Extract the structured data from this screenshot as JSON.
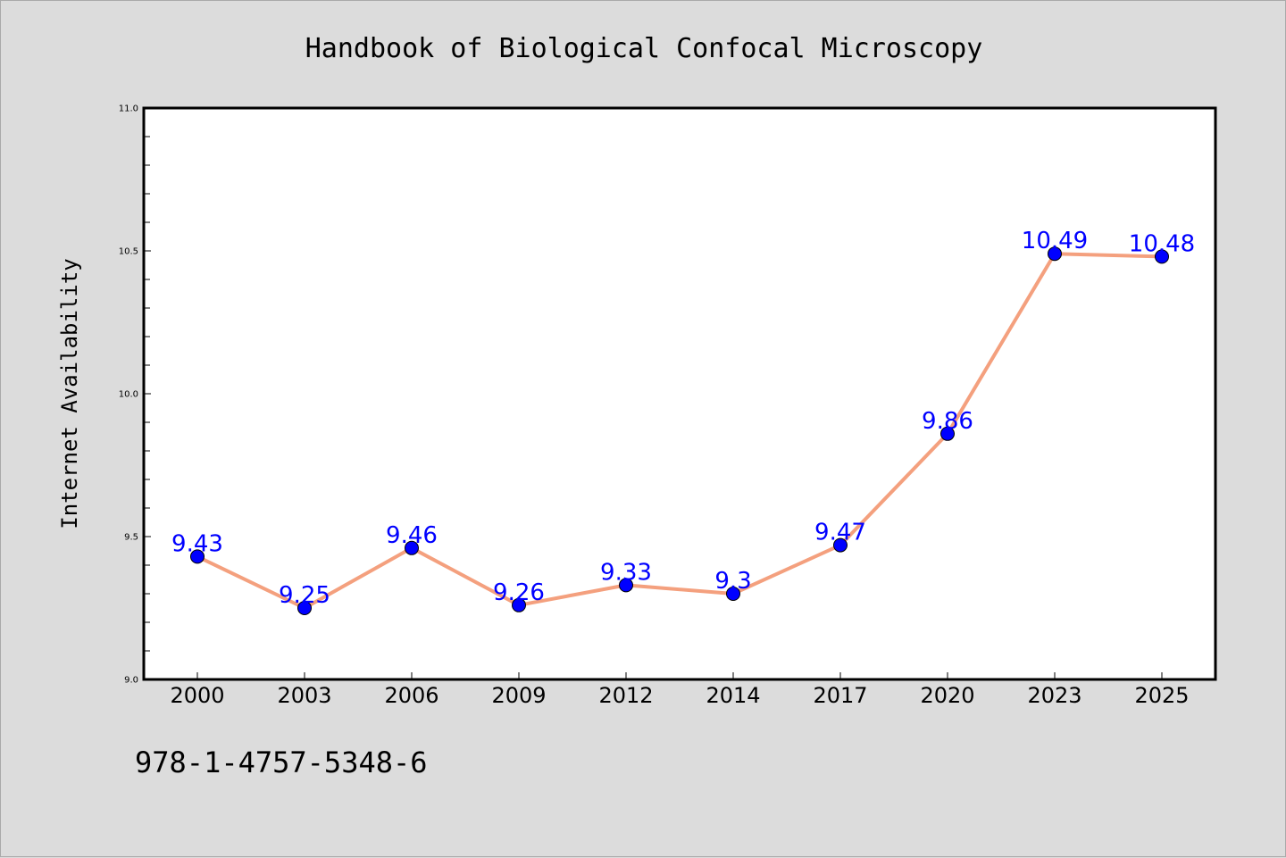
{
  "chart_data": {
    "type": "line",
    "title": "Handbook of Biological Confocal Microscopy",
    "xlabel": "",
    "ylabel": "Internet Availability",
    "categories": [
      "2000",
      "2003",
      "2006",
      "2009",
      "2012",
      "2014",
      "2017",
      "2020",
      "2023",
      "2025"
    ],
    "series": [
      {
        "values": [
          9.43,
          9.25,
          9.46,
          9.26,
          9.33,
          9.3,
          9.47,
          9.86,
          10.49,
          10.48
        ],
        "data_labels": [
          "9.43",
          "9.25",
          "9.46",
          "9.26",
          "9.33",
          "9.3",
          "9.47",
          "9.86",
          "10.49",
          "10.48"
        ],
        "line_color": "#f4a07e",
        "marker_color": "#0000ff",
        "label_color": "#0000ff"
      }
    ],
    "ylim": [
      9.0,
      11.0
    ],
    "y_major_ticks": [
      "9.0",
      "9.5",
      "10.0",
      "10.5",
      "11.0"
    ],
    "y_minor_tick_step": 0.1,
    "grid": false,
    "legend": "none"
  },
  "footnote": "978-1-4757-5348-6",
  "colors": {
    "page_background": "#dcdcdc",
    "plot_background": "#ffffff",
    "axis_color": "#000000"
  }
}
